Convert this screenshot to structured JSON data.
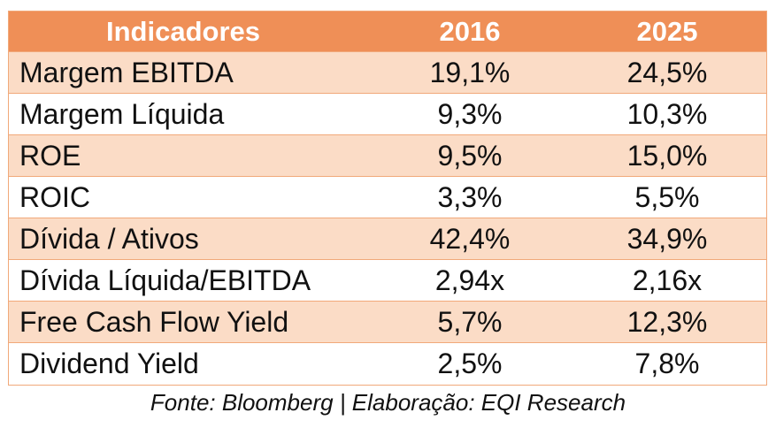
{
  "table": {
    "headers": [
      "Indicadores",
      "2016",
      "2025"
    ],
    "rows": [
      [
        "Margem EBITDA",
        "19,1%",
        "24,5%"
      ],
      [
        "Margem Líquida",
        "9,3%",
        "10,3%"
      ],
      [
        "ROE",
        "9,5%",
        "15,0%"
      ],
      [
        "ROIC",
        "3,3%",
        "5,5%"
      ],
      [
        "Dívida / Ativos",
        "42,4%",
        "34,9%"
      ],
      [
        "Dívida Líquida/EBITDA",
        "2,94x",
        "2,16x"
      ],
      [
        "Free Cash Flow Yield",
        "5,7%",
        "12,3%"
      ],
      [
        "Dividend Yield",
        "2,5%",
        "7,8%"
      ]
    ]
  },
  "source": "Fonte: Bloomberg | Elaboração: EQI Research",
  "colors": {
    "header_bg": "#ef8f57",
    "shaded_row_bg": "#fbdcc6",
    "border": "#f1a97a"
  }
}
